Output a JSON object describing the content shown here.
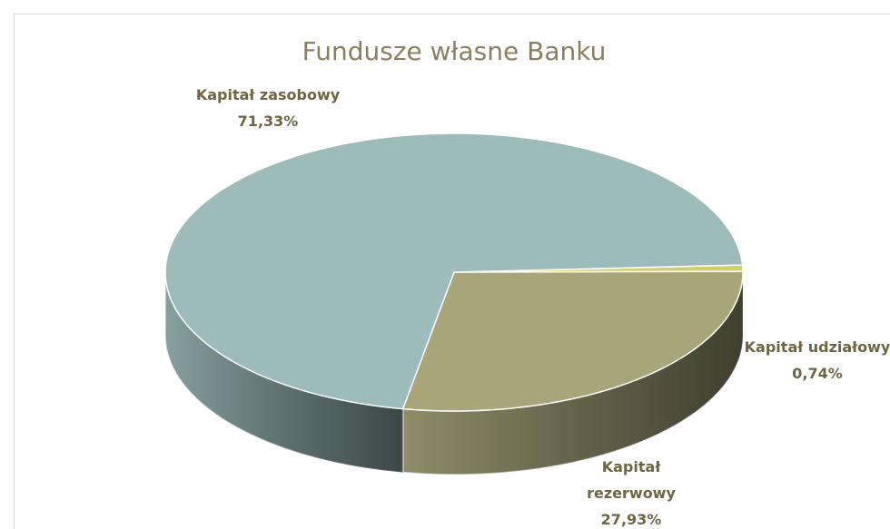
{
  "chart_data": {
    "type": "pie3d",
    "title": "Fundusze własne Banku",
    "categories": [
      "Kapitał udziałowy",
      "Kapitał rezerwowy",
      "Kapitał zasobowy"
    ],
    "values": [
      0.74,
      27.93,
      71.33
    ],
    "value_labels": [
      "0,74%",
      "27,93%",
      "71,33%"
    ],
    "colors": [
      "#d3cd6c",
      "#a9a57b",
      "#9dbbbb"
    ]
  }
}
